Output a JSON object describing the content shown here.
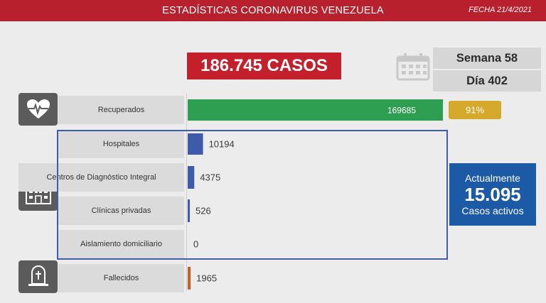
{
  "header": {
    "title": "ESTADÍSTICAS CORONAVIRUS VENEZUELA",
    "date": "FECHA 21/4/2021"
  },
  "summary": {
    "cases": "186.745 CASOS",
    "week": "Semana 58",
    "day": "Día 402"
  },
  "active": {
    "title": "Actualmente",
    "value": "15.095",
    "subtitle": "Casos activos"
  },
  "icons": {
    "recovered": "heart-pulse-icon",
    "hospital": "hospital-icon",
    "deceased": "tombstone-icon",
    "calendar": "calendar-icon"
  },
  "chart_data": {
    "type": "bar",
    "orientation": "horizontal",
    "categories": [
      "Recuperados",
      "Hospitales",
      "Centros de Diagnóstico Integral",
      "Clínicas privadas",
      "Aislamiento domiciliario",
      "Fallecidos"
    ],
    "values": [
      169685,
      10194,
      4375,
      526,
      0,
      1965
    ],
    "value_labels": [
      "169685",
      "10194",
      "4375",
      "526",
      "0",
      "1965"
    ],
    "colors": [
      "#2e9e50",
      "#3d5ba9",
      "#3d5ba9",
      "#3d5ba9",
      "#3d5ba9",
      "#c0602a"
    ],
    "percent_label": "91%",
    "percent_color": "#d4a92c"
  }
}
